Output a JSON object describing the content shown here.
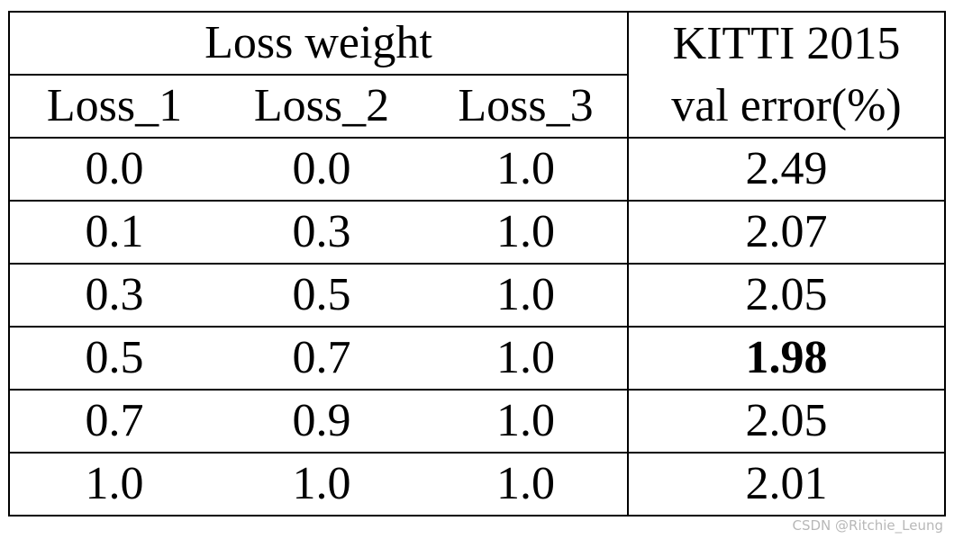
{
  "table": {
    "header": {
      "group_label": "Loss weight",
      "metric_line1": "KITTI 2015",
      "metric_line2": "val error(%)",
      "columns": [
        "Loss_1",
        "Loss_2",
        "Loss_3"
      ]
    },
    "rows": [
      {
        "loss1": "0.0",
        "loss2": "0.0",
        "loss3": "1.0",
        "error": "2.49"
      },
      {
        "loss1": "0.1",
        "loss2": "0.3",
        "loss3": "1.0",
        "error": "2.07"
      },
      {
        "loss1": "0.3",
        "loss2": "0.5",
        "loss3": "1.0",
        "error": "2.05"
      },
      {
        "loss1": "0.5",
        "loss2": "0.7",
        "loss3": "1.0",
        "error": "1.98"
      },
      {
        "loss1": "0.7",
        "loss2": "0.9",
        "loss3": "1.0",
        "error": "2.05"
      },
      {
        "loss1": "1.0",
        "loss2": "1.0",
        "loss3": "1.0",
        "error": "2.01"
      }
    ],
    "best_row_index": 3
  },
  "watermark": "CSDN @Ritchie_Leung"
}
